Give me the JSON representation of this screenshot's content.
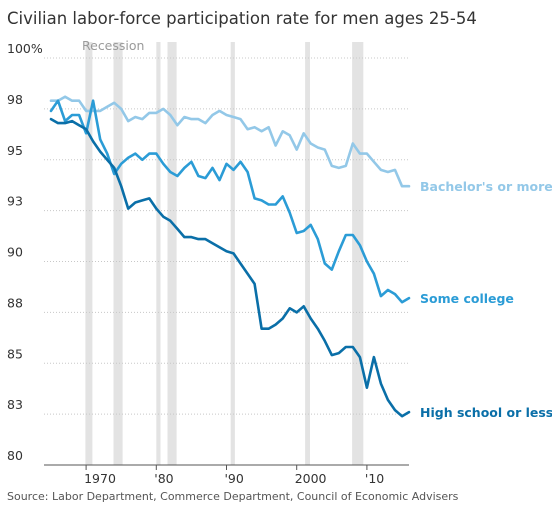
{
  "chart_data": {
    "type": "line",
    "title": "Civilian labor-force participation rate for men ages 25-54",
    "ylim": [
      80,
      100
    ],
    "y_ticks": [
      {
        "value": 100,
        "label": "100%"
      },
      {
        "value": 97.5,
        "label": "98"
      },
      {
        "value": 95,
        "label": "95"
      },
      {
        "value": 92.5,
        "label": "93"
      },
      {
        "value": 90,
        "label": "90"
      },
      {
        "value": 87.5,
        "label": "88"
      },
      {
        "value": 85,
        "label": "85"
      },
      {
        "value": 82.5,
        "label": "83"
      },
      {
        "value": 80,
        "label": "80"
      }
    ],
    "xlim": [
      1964,
      2016
    ],
    "x_ticks": [
      {
        "value": 1970,
        "label": "1970"
      },
      {
        "value": 1980,
        "label": "'80"
      },
      {
        "value": 1990,
        "label": "'90"
      },
      {
        "value": 2000,
        "label": "2000"
      },
      {
        "value": 2010,
        "label": "'10"
      }
    ],
    "grid": true,
    "recession_label": "Recession",
    "recessions": [
      [
        1969.9,
        1970.9
      ],
      [
        1973.9,
        1975.2
      ],
      [
        1980.0,
        1980.6
      ],
      [
        1981.6,
        1982.9
      ],
      [
        1990.6,
        1991.2
      ],
      [
        2001.2,
        2001.9
      ],
      [
        2007.9,
        2009.5
      ]
    ],
    "series": [
      {
        "name": "Bachelor's or more",
        "color": "#93c8e8",
        "points": [
          [
            1965,
            97.9
          ],
          [
            1966,
            97.9
          ],
          [
            1967,
            98.1
          ],
          [
            1968,
            97.9
          ],
          [
            1969,
            97.9
          ],
          [
            1970,
            97.4
          ],
          [
            1971,
            97.4
          ],
          [
            1972,
            97.4
          ],
          [
            1973,
            97.6
          ],
          [
            1974,
            97.8
          ],
          [
            1975,
            97.5
          ],
          [
            1976,
            96.9
          ],
          [
            1977,
            97.1
          ],
          [
            1978,
            97.0
          ],
          [
            1979,
            97.3
          ],
          [
            1980,
            97.3
          ],
          [
            1981,
            97.5
          ],
          [
            1982,
            97.2
          ],
          [
            1983,
            96.7
          ],
          [
            1984,
            97.1
          ],
          [
            1985,
            97.0
          ],
          [
            1986,
            97.0
          ],
          [
            1987,
            96.8
          ],
          [
            1988,
            97.2
          ],
          [
            1989,
            97.4
          ],
          [
            1990,
            97.2
          ],
          [
            1991,
            97.1
          ],
          [
            1992,
            97.0
          ],
          [
            1993,
            96.5
          ],
          [
            1994,
            96.6
          ],
          [
            1995,
            96.4
          ],
          [
            1996,
            96.6
          ],
          [
            1997,
            95.7
          ],
          [
            1998,
            96.4
          ],
          [
            1999,
            96.2
          ],
          [
            2000,
            95.5
          ],
          [
            2001,
            96.3
          ],
          [
            2002,
            95.8
          ],
          [
            2003,
            95.6
          ],
          [
            2004,
            95.5
          ],
          [
            2005,
            94.7
          ],
          [
            2006,
            94.6
          ],
          [
            2007,
            94.7
          ],
          [
            2008,
            95.8
          ],
          [
            2009,
            95.3
          ],
          [
            2010,
            95.3
          ],
          [
            2011,
            94.9
          ],
          [
            2012,
            94.5
          ],
          [
            2013,
            94.4
          ],
          [
            2014,
            94.5
          ],
          [
            2015,
            93.7
          ],
          [
            2016,
            93.7
          ]
        ]
      },
      {
        "name": "Some college",
        "color": "#2b9cd6",
        "points": [
          [
            1965,
            97.4
          ],
          [
            1966,
            97.9
          ],
          [
            1967,
            96.9
          ],
          [
            1968,
            97.2
          ],
          [
            1969,
            97.2
          ],
          [
            1970,
            96.3
          ],
          [
            1971,
            97.9
          ],
          [
            1972,
            96.0
          ],
          [
            1973,
            95.3
          ],
          [
            1974,
            94.3
          ],
          [
            1975,
            94.8
          ],
          [
            1976,
            95.1
          ],
          [
            1977,
            95.3
          ],
          [
            1978,
            95.0
          ],
          [
            1979,
            95.3
          ],
          [
            1980,
            95.3
          ],
          [
            1981,
            94.8
          ],
          [
            1982,
            94.4
          ],
          [
            1983,
            94.2
          ],
          [
            1984,
            94.6
          ],
          [
            1985,
            94.9
          ],
          [
            1986,
            94.2
          ],
          [
            1987,
            94.1
          ],
          [
            1988,
            94.6
          ],
          [
            1989,
            94.0
          ],
          [
            1990,
            94.8
          ],
          [
            1991,
            94.5
          ],
          [
            1992,
            94.9
          ],
          [
            1993,
            94.4
          ],
          [
            1994,
            93.1
          ],
          [
            1995,
            93.0
          ],
          [
            1996,
            92.8
          ],
          [
            1997,
            92.8
          ],
          [
            1998,
            93.2
          ],
          [
            1999,
            92.4
          ],
          [
            2000,
            91.4
          ],
          [
            2001,
            91.5
          ],
          [
            2002,
            91.8
          ],
          [
            2003,
            91.1
          ],
          [
            2004,
            89.9
          ],
          [
            2005,
            89.6
          ],
          [
            2006,
            90.5
          ],
          [
            2007,
            91.3
          ],
          [
            2008,
            91.3
          ],
          [
            2009,
            90.8
          ],
          [
            2010,
            90.0
          ],
          [
            2011,
            89.4
          ],
          [
            2012,
            88.3
          ],
          [
            2013,
            88.6
          ],
          [
            2014,
            88.4
          ],
          [
            2015,
            88.0
          ],
          [
            2016,
            88.2
          ]
        ]
      },
      {
        "name": "High school or less",
        "color": "#0a6fa8",
        "points": [
          [
            1965,
            97.0
          ],
          [
            1966,
            96.8
          ],
          [
            1967,
            96.8
          ],
          [
            1968,
            96.9
          ],
          [
            1969,
            96.7
          ],
          [
            1970,
            96.5
          ],
          [
            1971,
            95.9
          ],
          [
            1972,
            95.4
          ],
          [
            1973,
            95.0
          ],
          [
            1974,
            94.6
          ],
          [
            1975,
            93.7
          ],
          [
            1976,
            92.6
          ],
          [
            1977,
            92.9
          ],
          [
            1978,
            93.0
          ],
          [
            1979,
            93.1
          ],
          [
            1980,
            92.6
          ],
          [
            1981,
            92.2
          ],
          [
            1982,
            92.0
          ],
          [
            1983,
            91.6
          ],
          [
            1984,
            91.2
          ],
          [
            1985,
            91.2
          ],
          [
            1986,
            91.1
          ],
          [
            1987,
            91.1
          ],
          [
            1988,
            90.9
          ],
          [
            1989,
            90.7
          ],
          [
            1990,
            90.5
          ],
          [
            1991,
            90.4
          ],
          [
            1992,
            89.9
          ],
          [
            1993,
            89.4
          ],
          [
            1994,
            88.9
          ],
          [
            1995,
            86.7
          ],
          [
            1996,
            86.7
          ],
          [
            1997,
            86.9
          ],
          [
            1998,
            87.2
          ],
          [
            1999,
            87.7
          ],
          [
            2000,
            87.5
          ],
          [
            2001,
            87.8
          ],
          [
            2002,
            87.2
          ],
          [
            2003,
            86.7
          ],
          [
            2004,
            86.1
          ],
          [
            2005,
            85.4
          ],
          [
            2006,
            85.5
          ],
          [
            2007,
            85.8
          ],
          [
            2008,
            85.8
          ],
          [
            2009,
            85.3
          ],
          [
            2010,
            83.8
          ],
          [
            2011,
            85.3
          ],
          [
            2012,
            84.0
          ],
          [
            2013,
            83.2
          ],
          [
            2014,
            82.7
          ],
          [
            2015,
            82.4
          ],
          [
            2016,
            82.6
          ]
        ]
      }
    ],
    "source": "Source: Labor Department, Commerce Department, Council of Economic Advisers"
  }
}
